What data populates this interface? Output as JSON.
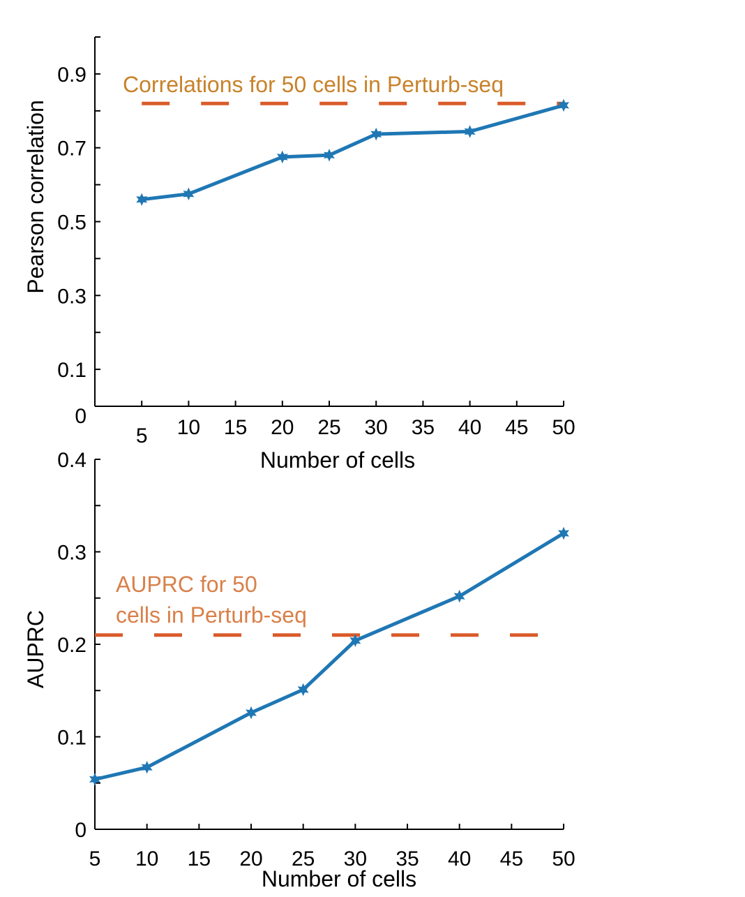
{
  "chart_data": [
    {
      "type": "line",
      "title": "",
      "xlabel": "Number of cells",
      "ylabel": "Pearson correlation",
      "xlim": [
        0,
        50
      ],
      "ylim": [
        0,
        1.0
      ],
      "x_ticks": [
        5,
        10,
        15,
        20,
        25,
        30,
        35,
        40,
        45,
        50
      ],
      "y_ticks": [
        0.1,
        0.3,
        0.5,
        0.7,
        0.9
      ],
      "y_zero_label": "0",
      "series": [
        {
          "x": [
            5,
            10,
            20,
            25,
            30,
            40,
            50
          ],
          "y": [
            0.56,
            0.575,
            0.675,
            0.68,
            0.737,
            0.744,
            0.815
          ],
          "color": "#1f77b4",
          "marker": "star"
        }
      ],
      "reference_line": {
        "y": 0.82,
        "x_range": [
          5,
          50
        ],
        "color": "#d95b2a",
        "style": "dashed"
      },
      "annotation": {
        "lines": [
          "Correlations for 50 cells in Perturb-seq"
        ],
        "color": "#c8822a"
      }
    },
    {
      "type": "line",
      "title": "",
      "xlabel": "Number of cells",
      "ylabel": "AUPRC",
      "xlim": [
        5,
        50
      ],
      "ylim": [
        0,
        0.4
      ],
      "x_ticks": [
        5,
        10,
        15,
        20,
        25,
        30,
        35,
        40,
        45,
        50
      ],
      "y_ticks": [
        0,
        0.1,
        0.2,
        0.3,
        0.4
      ],
      "series": [
        {
          "x": [
            5,
            10,
            20,
            25,
            30,
            40,
            50
          ],
          "y": [
            0.054,
            0.067,
            0.126,
            0.151,
            0.204,
            0.252,
            0.32
          ],
          "color": "#1f77b4",
          "marker": "star"
        }
      ],
      "reference_line": {
        "y": 0.21,
        "x_range": [
          5,
          48
        ],
        "color": "#d95b2a",
        "style": "dashed"
      },
      "annotation": {
        "lines": [
          "AUPRC for 50",
          "cells in Perturb-seq"
        ],
        "color": "#d9804a"
      }
    }
  ]
}
